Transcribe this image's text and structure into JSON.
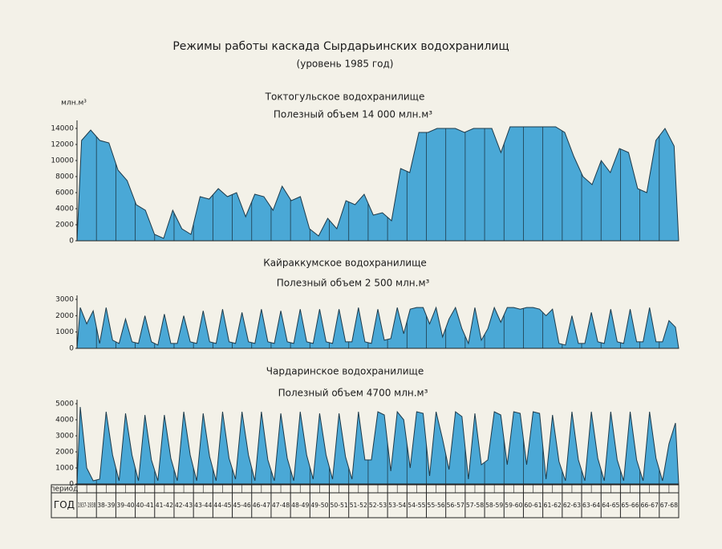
{
  "title": "Режимы работы каскада Сырдарьинских водохранилищ",
  "subtitle": "(уровень 1985 год)",
  "chart_data": [
    {
      "type": "area",
      "title": "Токтогульское водохранилище",
      "subtitle": "Полезный объем 14 000 млн.м³",
      "y_label": "млн.м³",
      "color": "#4aa8d6",
      "ylim": [
        0,
        14500
      ],
      "yticks": [
        0,
        2000,
        4000,
        6000,
        8000,
        10000,
        12000,
        14000
      ],
      "values": [
        12500,
        13800,
        12500,
        12200,
        8800,
        7500,
        4500,
        3800,
        800,
        300,
        3800,
        1500,
        800,
        5500,
        5200,
        6500,
        5500,
        6000,
        3000,
        5800,
        5500,
        3800,
        6800,
        5000,
        5500,
        1500,
        600,
        2800,
        1500,
        5000,
        4500,
        5800,
        3200,
        3500,
        2500,
        9000,
        8500,
        13500,
        13500,
        14000,
        14000,
        14000,
        13500,
        14000,
        14000,
        14000,
        11000,
        14200,
        14200,
        14200,
        14200,
        14200,
        14200,
        13500,
        10500,
        8000,
        7000,
        10000,
        8500,
        11500,
        11000,
        6500,
        6000,
        12500,
        14000,
        11800
      ]
    },
    {
      "type": "area",
      "title": "Кайраккумское водохранилище",
      "subtitle": "Полезный объем 2 500 млн.м³",
      "color": "#4aa8d6",
      "ylim": [
        0,
        3000
      ],
      "yticks": [
        0,
        1000,
        2000,
        3000
      ],
      "values": [
        2500,
        1500,
        2300,
        300,
        2500,
        500,
        300,
        1800,
        400,
        300,
        2000,
        400,
        200,
        2100,
        300,
        300,
        2000,
        400,
        300,
        2300,
        400,
        300,
        2400,
        400,
        300,
        2200,
        400,
        300,
        2400,
        400,
        300,
        2300,
        400,
        300,
        2400,
        400,
        300,
        2400,
        400,
        300,
        2400,
        400,
        400,
        2500,
        400,
        300,
        2400,
        500,
        600,
        2500,
        900,
        2400,
        2500,
        2500,
        1500,
        2500,
        700,
        1800,
        2500,
        1200,
        300,
        2500,
        500,
        1200,
        2500,
        1600,
        2500,
        2500,
        2400,
        2500,
        2500,
        2400,
        2000,
        2400,
        300,
        200,
        2000,
        300,
        300,
        2200,
        400,
        300,
        2400,
        400,
        300,
        2400,
        400,
        400,
        2500,
        400,
        400,
        1700,
        1300
      ]
    },
    {
      "type": "area",
      "title": "Чардаринское водохранилище",
      "subtitle": "Полезный объем  4700 млн.м³",
      "color": "#4aa8d6",
      "ylim": [
        0,
        5000
      ],
      "yticks": [
        0,
        1000,
        2000,
        3000,
        4000,
        5000
      ],
      "values": [
        4800,
        1000,
        200,
        300,
        4500,
        1800,
        200,
        4400,
        1800,
        200,
        4300,
        1500,
        200,
        4300,
        1600,
        200,
        4500,
        1800,
        200,
        4400,
        1700,
        200,
        4500,
        1600,
        300,
        4500,
        1800,
        200,
        4500,
        1500,
        200,
        4400,
        1600,
        200,
        4500,
        1800,
        300,
        4400,
        1800,
        300,
        4400,
        1700,
        300,
        4500,
        1500,
        1500,
        4500,
        4300,
        800,
        4500,
        4000,
        1000,
        4500,
        4400,
        500,
        4500,
        2800,
        900,
        4500,
        4200,
        300,
        4400,
        1200,
        1500,
        4500,
        4300,
        1200,
        4500,
        4400,
        1200,
        4500,
        4400,
        300,
        4300,
        1400,
        200,
        4500,
        1500,
        200,
        4500,
        1600,
        200,
        4500,
        1500,
        200,
        4500,
        1500,
        200,
        4500,
        1600,
        200,
        2500,
        3800
      ]
    }
  ],
  "table": {
    "row_labels": [
      "период",
      "ГОД"
    ],
    "years": [
      "1937-1938",
      "38-39",
      "39-40",
      "40-41",
      "41-42",
      "42-43",
      "43-44",
      "44-45",
      "45-46",
      "46-47",
      "47-48",
      "48-49",
      "49-50",
      "50-51",
      "51-52",
      "52-53",
      "53-54",
      "54-55",
      "55-56",
      "56-57",
      "57-58",
      "58-59",
      "59-60",
      "60-61",
      "61-62",
      "62-63",
      "63-64",
      "64-65",
      "65-66",
      "66-67",
      "67-68"
    ]
  }
}
